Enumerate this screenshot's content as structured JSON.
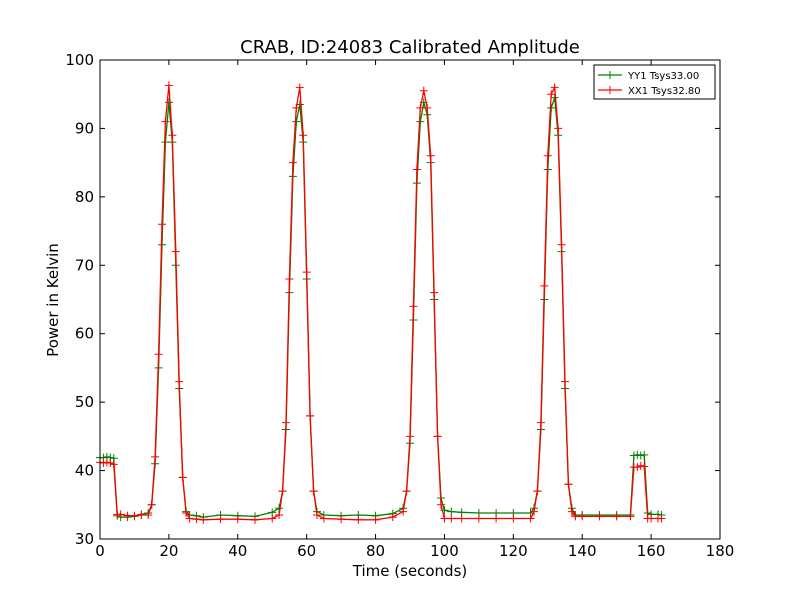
{
  "chart_data": {
    "type": "line",
    "title": "CRAB, ID:24083 Calibrated Amplitude",
    "xlabel": "Time (seconds)",
    "ylabel": "Power in Kelvin",
    "xlim": [
      0,
      180
    ],
    "ylim": [
      30,
      100
    ],
    "xticks": [
      0,
      20,
      40,
      60,
      80,
      100,
      120,
      140,
      160,
      180
    ],
    "yticks": [
      30,
      40,
      50,
      60,
      70,
      80,
      90,
      100
    ],
    "grid": false,
    "legend_position": "top-right",
    "marker": "plus",
    "series": [
      {
        "name": "YY1 Tsys33.00",
        "color": "#008000",
        "x": [
          0,
          1,
          2,
          3,
          4,
          5,
          6,
          8,
          10,
          12,
          14,
          15,
          16,
          17,
          18,
          19,
          20,
          21,
          22,
          23,
          24,
          25,
          26,
          28,
          30,
          35,
          40,
          45,
          50,
          52,
          53,
          54,
          55,
          56,
          57,
          58,
          59,
          60,
          61,
          62,
          63,
          65,
          70,
          75,
          80,
          85,
          88,
          89,
          90,
          91,
          92,
          93,
          94,
          95,
          96,
          97,
          98,
          99,
          100,
          102,
          105,
          110,
          115,
          120,
          125,
          126,
          127,
          128,
          129,
          130,
          131,
          132,
          133,
          134,
          135,
          136,
          137,
          138,
          140,
          145,
          150,
          154,
          155,
          156,
          157,
          158,
          159,
          160,
          162,
          163
        ],
        "y": [
          41.9,
          41.9,
          42.0,
          41.9,
          41.8,
          33.4,
          33.2,
          33.2,
          33.3,
          33.6,
          33.8,
          35,
          41,
          55,
          73,
          88,
          93.8,
          88,
          70,
          52,
          39,
          34,
          33.5,
          33.4,
          33.2,
          33.5,
          33.4,
          33.3,
          33.9,
          34.5,
          37,
          46,
          66,
          83,
          91,
          93.5,
          88,
          68,
          48,
          37,
          34,
          33.5,
          33.4,
          33.5,
          33.4,
          33.7,
          34.5,
          37,
          44,
          62,
          82,
          91,
          93.8,
          92,
          85,
          65,
          45,
          36,
          34.2,
          34.0,
          33.9,
          33.8,
          33.8,
          33.8,
          33.8,
          34.5,
          37,
          46,
          65,
          84,
          93,
          94.5,
          89,
          72,
          52,
          38,
          34.5,
          33.5,
          33.5,
          33.5,
          33.5,
          33.5,
          42.2,
          42.3,
          42.2,
          42.3,
          33.8,
          33.6,
          33.6,
          33.5
        ]
      },
      {
        "name": "XX1 Tsys32.80",
        "color": "#ff0000",
        "x": [
          0,
          1,
          2,
          3,
          4,
          5,
          6,
          8,
          10,
          12,
          14,
          15,
          16,
          17,
          18,
          19,
          20,
          21,
          22,
          23,
          24,
          25,
          26,
          28,
          30,
          35,
          40,
          45,
          50,
          52,
          53,
          54,
          55,
          56,
          57,
          58,
          59,
          60,
          61,
          62,
          63,
          65,
          70,
          75,
          80,
          85,
          88,
          89,
          90,
          91,
          92,
          93,
          94,
          95,
          96,
          97,
          98,
          99,
          100,
          102,
          105,
          110,
          115,
          120,
          125,
          126,
          127,
          128,
          129,
          130,
          131,
          132,
          133,
          134,
          135,
          136,
          137,
          138,
          140,
          145,
          150,
          154,
          155,
          156,
          157,
          158,
          159,
          160,
          162,
          163
        ],
        "y": [
          41.2,
          41.1,
          41.2,
          41.1,
          40.9,
          33.6,
          33.6,
          33.4,
          33.4,
          33.5,
          33.5,
          35,
          42,
          57,
          76,
          91,
          96.3,
          89,
          72,
          53,
          39,
          33.8,
          33.0,
          32.9,
          32.8,
          32.9,
          32.9,
          32.8,
          33.0,
          33.5,
          37,
          47,
          68,
          85,
          93,
          96.0,
          89,
          69,
          48,
          37,
          33.5,
          33.0,
          32.9,
          32.8,
          32.8,
          33.2,
          34.0,
          37,
          45,
          64,
          84,
          93,
          95.5,
          93,
          86,
          66,
          45,
          35,
          33.0,
          33.0,
          33.0,
          33.0,
          33.0,
          33.0,
          33.0,
          34.0,
          37,
          47,
          67,
          86,
          95,
          96.0,
          90,
          73,
          53,
          38,
          34.0,
          33.3,
          33.3,
          33.3,
          33.3,
          33.3,
          40.5,
          40.5,
          40.7,
          40.6,
          33.0,
          33.0,
          33.0,
          33.0
        ]
      }
    ]
  }
}
